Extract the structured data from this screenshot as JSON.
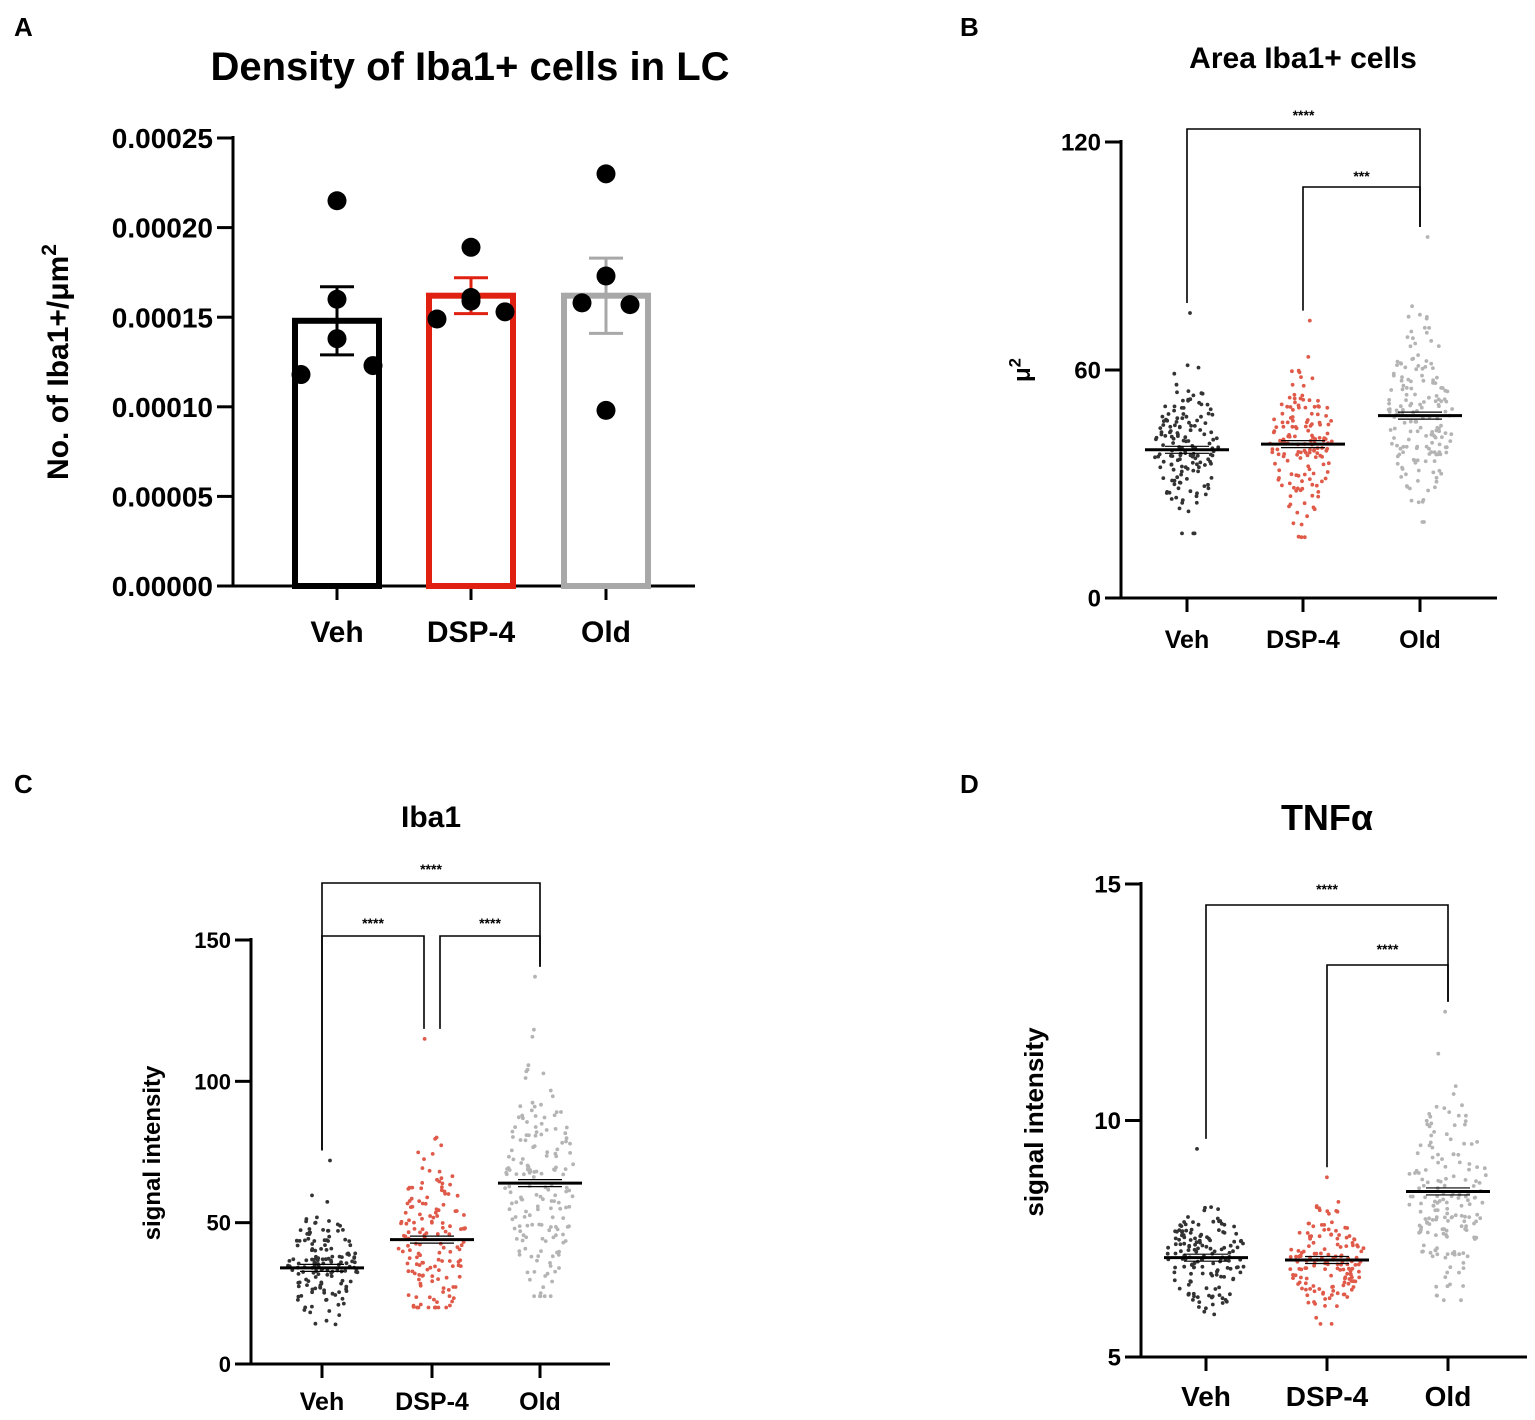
{
  "chart_data": [
    {
      "panel": "A",
      "type": "bar",
      "title": "Density of Iba1+ cells in LC",
      "ylabel": "No. of Iba1+/μm",
      "ylabel_sup": "2",
      "categories": [
        "Veh",
        "DSP-4",
        "Old"
      ],
      "ylim": [
        0,
        0.00025
      ],
      "yticks": [
        0,
        5e-05,
        0.0001,
        0.00015,
        0.0002,
        0.00025
      ],
      "ytick_labels": [
        "0.00000",
        "0.00005",
        "0.00010",
        "0.00015",
        "0.00020",
        "0.00025"
      ],
      "series": [
        {
          "name": "Veh",
          "mean": 0.000148,
          "sem": 1.9e-05,
          "color": "#000000",
          "points": [
            0.000215,
            0.00016,
            0.000138,
            0.000118,
            0.000123
          ]
        },
        {
          "name": "DSP-4",
          "mean": 0.000162,
          "sem": 1e-05,
          "color": "#e02010",
          "points": [
            0.000189,
            0.000159,
            0.000153,
            0.000149,
            0.000161
          ]
        },
        {
          "name": "Old",
          "mean": 0.000162,
          "sem": 2.1e-05,
          "color": "#a8a8a8",
          "points": [
            0.00023,
            0.000173,
            0.000157,
            0.000158,
            9.8e-05
          ]
        }
      ]
    },
    {
      "panel": "B",
      "type": "scatter",
      "title": "Area Iba1+ cells",
      "ylabel": "μ",
      "ylabel_sup": "2",
      "categories": [
        "Veh",
        "DSP-4",
        "Old"
      ],
      "ylim": [
        0,
        120
      ],
      "yticks": [
        0,
        60,
        120
      ],
      "ytick_labels": [
        "0",
        "60",
        "120"
      ],
      "series": [
        {
          "name": "Veh",
          "mean": 39,
          "min": 17,
          "max": 75,
          "n": 150,
          "color": "#333333"
        },
        {
          "name": "DSP-4",
          "mean": 40.5,
          "min": 16,
          "max": 73,
          "n": 150,
          "color": "#e05a4a"
        },
        {
          "name": "Old",
          "mean": 48,
          "min": 20,
          "max": 95,
          "n": 170,
          "color": "#b4b4b4"
        }
      ],
      "comparisons": [
        {
          "from": "Veh",
          "to": "Old",
          "label": "****"
        },
        {
          "from": "DSP-4",
          "to": "Old",
          "label": "***"
        }
      ]
    },
    {
      "panel": "C",
      "type": "scatter",
      "title": "Iba1",
      "ylabel": "signal intensity",
      "categories": [
        "Veh",
        "DSP-4",
        "Old"
      ],
      "ylim": [
        0,
        150
      ],
      "yticks": [
        0,
        50,
        100,
        150
      ],
      "ytick_labels": [
        "0",
        "50",
        "100",
        "150"
      ],
      "series": [
        {
          "name": "Veh",
          "mean": 34,
          "min": 14,
          "max": 72,
          "n": 150,
          "color": "#333333"
        },
        {
          "name": "DSP-4",
          "mean": 44,
          "min": 20,
          "max": 115,
          "n": 150,
          "color": "#e05a4a"
        },
        {
          "name": "Old",
          "mean": 64,
          "min": 24,
          "max": 137,
          "n": 170,
          "color": "#b4b4b4"
        }
      ],
      "comparisons": [
        {
          "from": "Veh",
          "to": "Old",
          "label": "****"
        },
        {
          "from": "Veh",
          "to": "DSP-4",
          "label": "****"
        },
        {
          "from": "DSP-4",
          "to": "Old",
          "label": "****"
        }
      ]
    },
    {
      "panel": "D",
      "type": "scatter",
      "title": "TNFα",
      "ylabel": "signal intensity",
      "categories": [
        "Veh",
        "DSP-4",
        "Old"
      ],
      "ylim": [
        5,
        15
      ],
      "yticks": [
        5,
        10,
        15
      ],
      "ytick_labels": [
        "5",
        "10",
        "15"
      ],
      "series": [
        {
          "name": "Veh",
          "mean": 7.1,
          "min": 5.9,
          "max": 9.4,
          "n": 150,
          "color": "#333333"
        },
        {
          "name": "DSP-4",
          "mean": 7.05,
          "min": 5.7,
          "max": 8.8,
          "n": 150,
          "color": "#e05a4a"
        },
        {
          "name": "Old",
          "mean": 8.5,
          "min": 6.2,
          "max": 12.3,
          "n": 170,
          "color": "#b4b4b4"
        }
      ],
      "comparisons": [
        {
          "from": "Veh",
          "to": "Old",
          "label": "****"
        },
        {
          "from": "DSP-4",
          "to": "Old",
          "label": "****"
        }
      ]
    }
  ]
}
